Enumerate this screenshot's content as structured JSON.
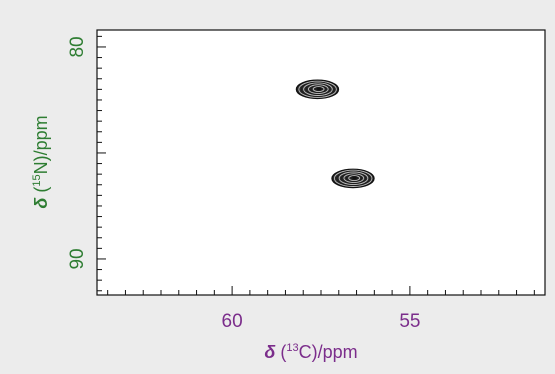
{
  "chart_data": {
    "type": "scatter",
    "subtype": "2D NMR contour spectrum",
    "title": "",
    "xlabel": {
      "italic": "δ",
      "before_sup": " (",
      "sup": "13",
      "after_sup": "C)/ppm"
    },
    "ylabel": {
      "italic": "δ",
      "before_sup": " (",
      "sup": "15",
      "after_sup": "N)/ppm"
    },
    "xlim": [
      63.8,
      51.2
    ],
    "ylim": [
      79.2,
      91.7
    ],
    "x_reversed": true,
    "y_reversed": true,
    "x_ticks": [
      {
        "value": 60,
        "label": "60"
      },
      {
        "value": 55,
        "label": "55"
      }
    ],
    "y_ticks": [
      {
        "value": 80,
        "label": "80"
      },
      {
        "value": 90,
        "label": "90"
      }
    ],
    "grid": false,
    "legend": "none",
    "peaks": [
      {
        "x": 57.6,
        "y": 82.0
      },
      {
        "x": 56.6,
        "y": 86.2
      }
    ]
  },
  "colors": {
    "background": "#ececec",
    "plot_area": "#ffffff",
    "frame": "#111111",
    "x_axis_text": "#7b2d8b",
    "y_axis_text": "#2e7d32",
    "contour": "#111111"
  }
}
